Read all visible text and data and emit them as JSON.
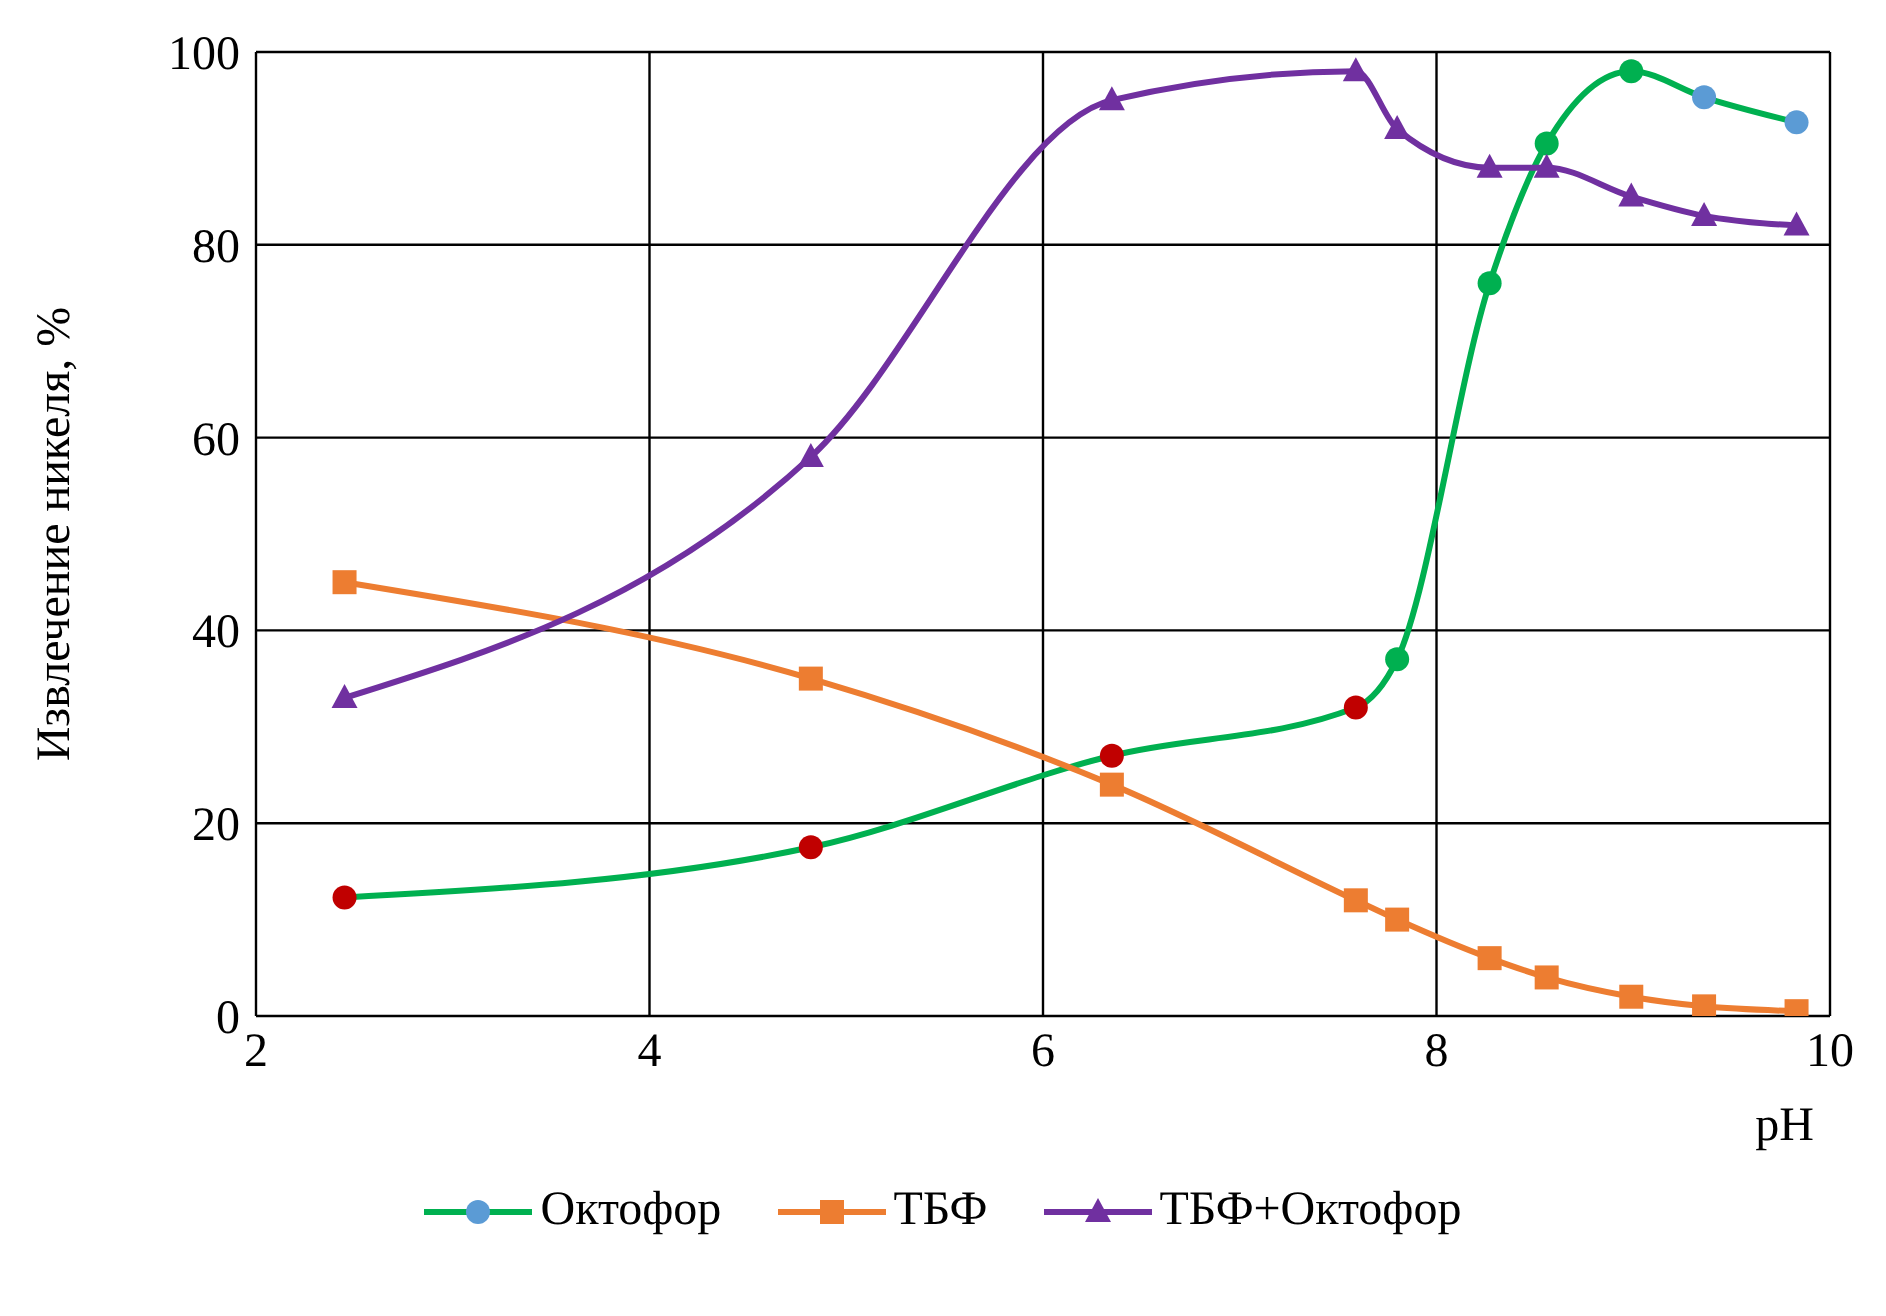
{
  "chart_data": {
    "type": "line",
    "xlabel": "pH",
    "ylabel": "Извлечение никеля, %",
    "xlim": [
      2,
      10
    ],
    "xticks": [
      2,
      4,
      6,
      8,
      10
    ],
    "ylim": [
      0,
      100
    ],
    "yticks": [
      0,
      20,
      40,
      60,
      80,
      100
    ],
    "grid": true,
    "legend": "bottom",
    "series": [
      {
        "name": "Октофор",
        "color": "#00b050",
        "marker": "circle",
        "x": [
          2.45,
          4.82,
          6.35,
          7.59,
          7.8,
          8.27,
          8.56,
          8.99,
          9.36,
          9.83
        ],
        "values": [
          12.3,
          17.5,
          27,
          32,
          37,
          76,
          90.5,
          98,
          95.3,
          92.7
        ],
        "colors": [
          "#c00000",
          "#c00000",
          "#c00000",
          "#c00000",
          "#00b050",
          "#00b050",
          "#00b050",
          "#00b050",
          "#5b9bd5",
          "#5b9bd5"
        ]
      },
      {
        "name": "ТБФ",
        "color": "#ed7d31",
        "marker": "square",
        "x": [
          2.45,
          4.82,
          6.35,
          7.59,
          7.8,
          8.27,
          8.56,
          8.99,
          9.36,
          9.83
        ],
        "values": [
          45,
          35,
          24,
          12,
          10,
          6,
          4,
          2,
          1,
          0.5
        ]
      },
      {
        "name": "ТБФ+Октофор",
        "color": "#7030a0",
        "marker": "triangle",
        "x": [
          2.45,
          4.82,
          6.35,
          7.59,
          7.8,
          8.27,
          8.56,
          8.99,
          9.36,
          9.83
        ],
        "values": [
          33,
          58,
          95,
          98,
          92,
          88,
          88,
          85,
          83,
          82
        ]
      }
    ]
  }
}
